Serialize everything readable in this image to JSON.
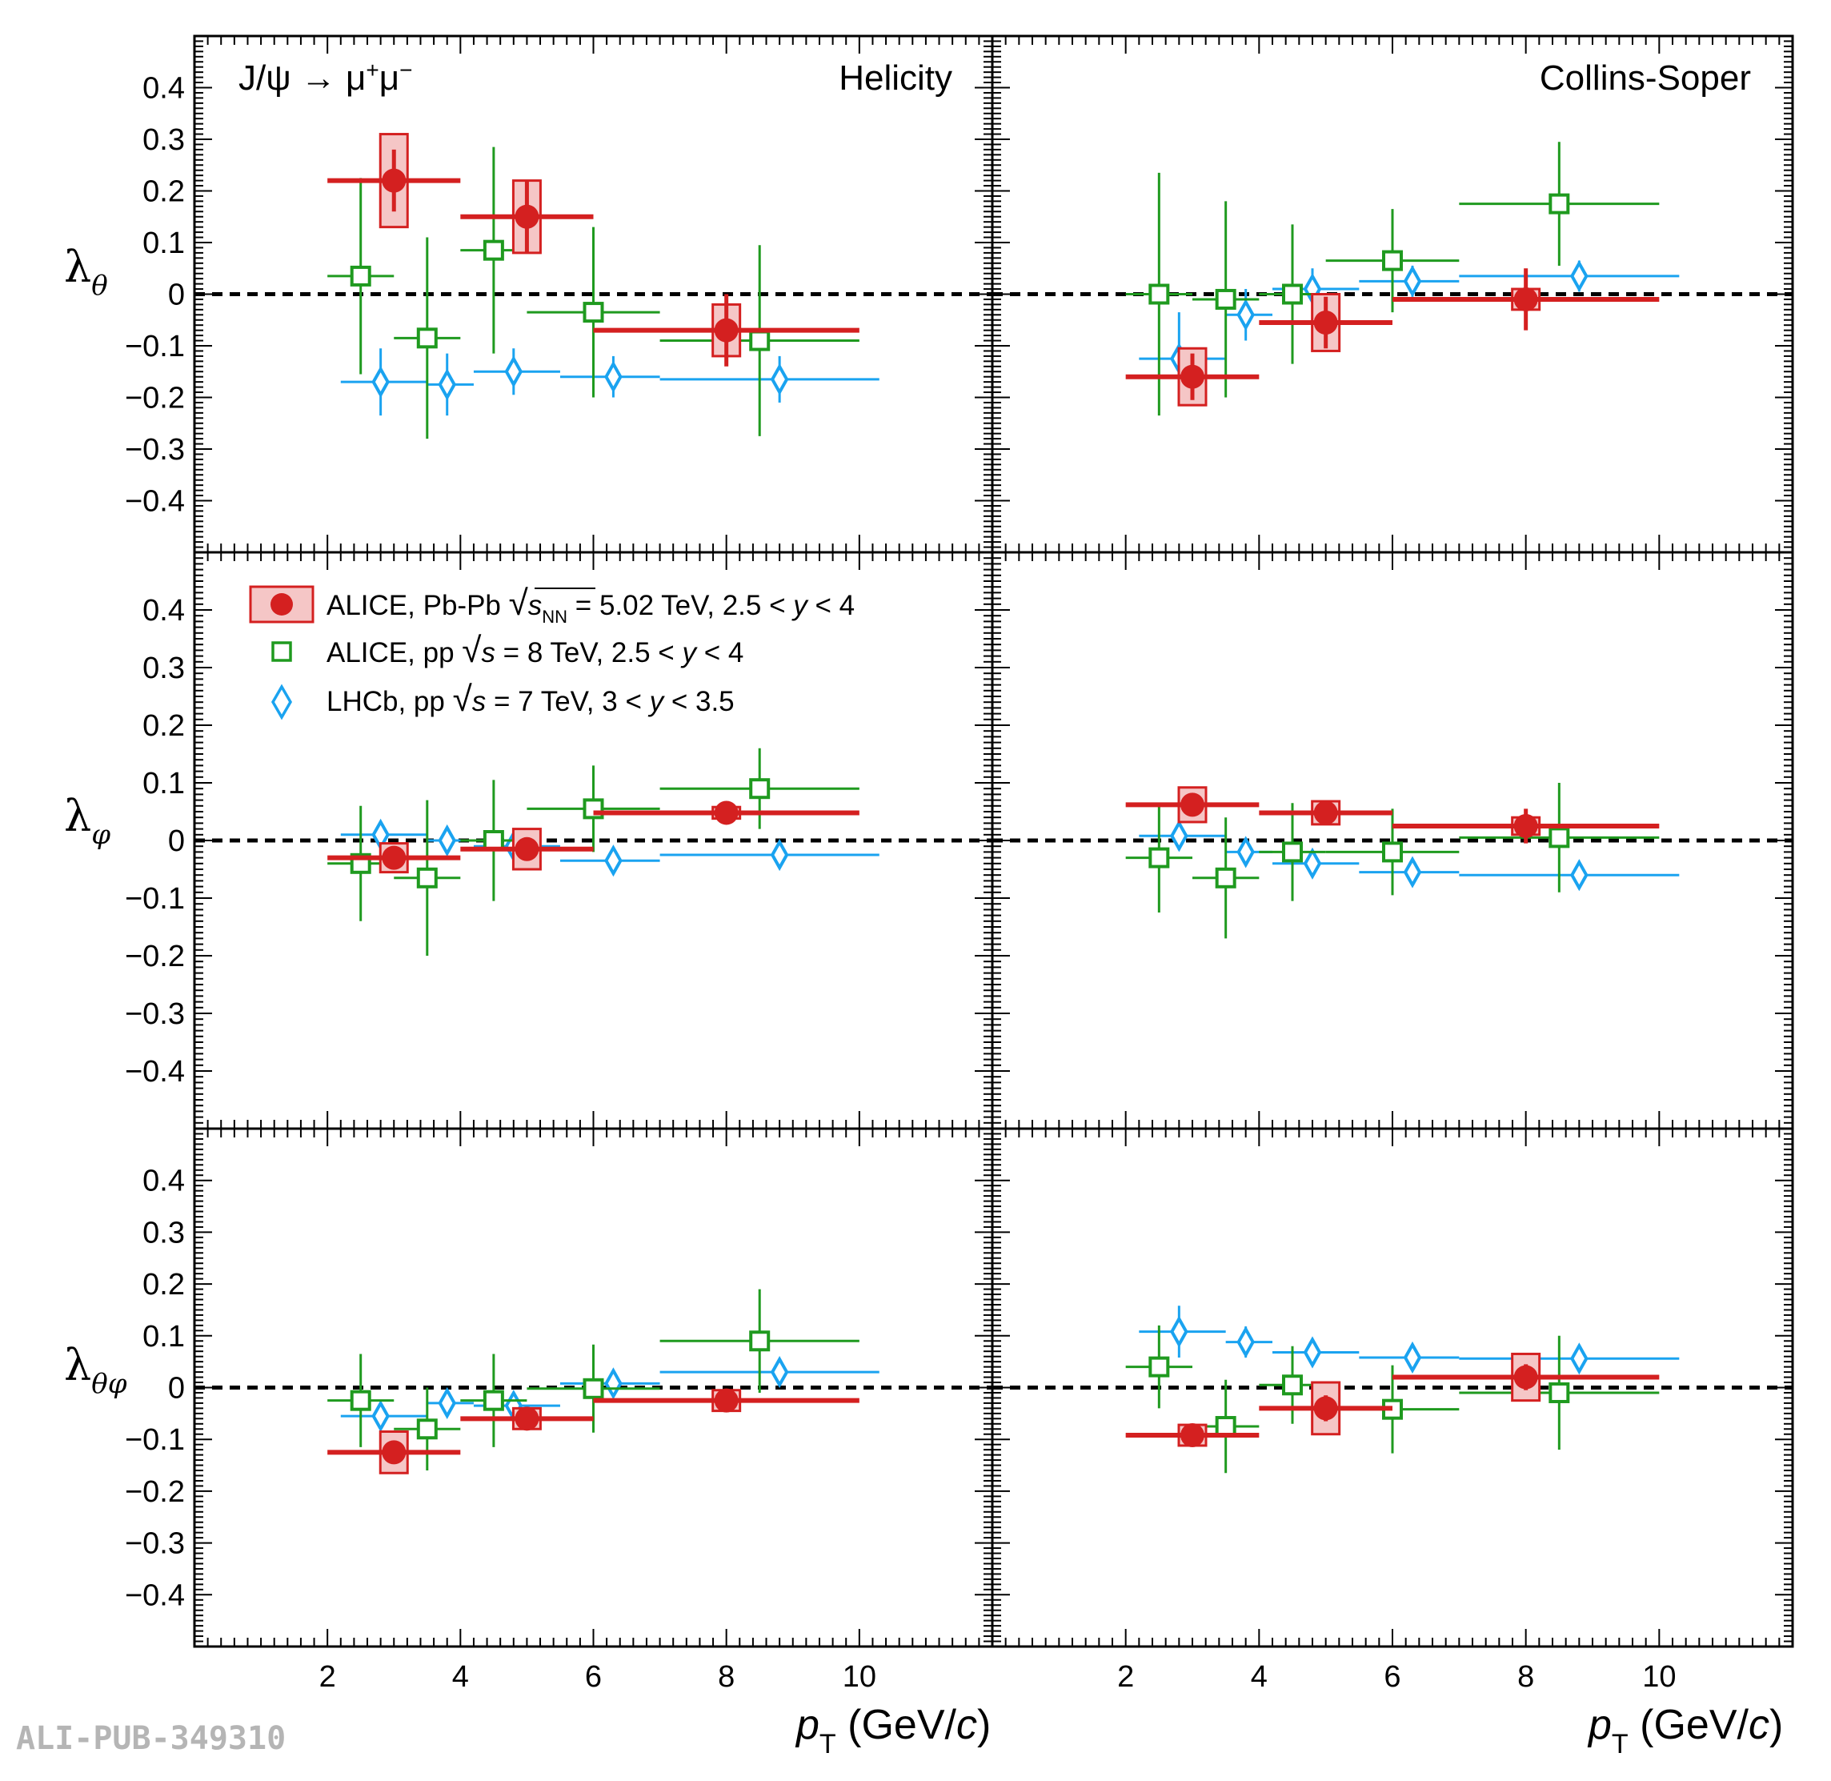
{
  "chart_data": {
    "type": "scatter",
    "xlim": [
      0,
      12
    ],
    "ylim": [
      -0.5,
      0.5
    ],
    "x_ticks": [
      2,
      4,
      6,
      8,
      10
    ],
    "y_ticks": [
      -0.4,
      -0.3,
      -0.2,
      -0.1,
      0,
      0.1,
      0.2,
      0.3,
      0.4
    ],
    "y_tick_labels": [
      "−0.4",
      "−0.3",
      "−0.2",
      "−0.1",
      "0",
      "0.1",
      "0.2",
      "0.3",
      "0.4"
    ],
    "x_tick_labels": [
      "2",
      "4",
      "6",
      "8",
      "10"
    ],
    "xlabel_left": {
      "p": "p",
      "sub": "T",
      "unit_pre": " (GeV/",
      "unit_c": "c",
      "unit_post": ")"
    },
    "xlabel_right": {
      "p": "p",
      "sub": "T",
      "unit_pre": " (GeV/",
      "unit_c": "c",
      "unit_post": ")"
    },
    "row_labels": [
      {
        "symbol": "λ",
        "sub": "θ"
      },
      {
        "symbol": "λ",
        "sub": "φ"
      },
      {
        "symbol": "λ",
        "sub": "θφ"
      }
    ],
    "column_titles": [
      "Helicity",
      "Collins-Soper"
    ],
    "decay_label": {
      "a": "J/ψ → μ",
      "sup1": "+",
      "b": "μ",
      "sup2": "−"
    },
    "watermark": "ALI-PUB-349310",
    "legend": [
      {
        "name": "ALICE, Pb-Pb",
        "sqrt_arg": "s",
        "sqrt_sub": "NN",
        "rest": " = 5.02 TeV, 2.5 < ",
        "yvar": "y",
        "tail": " < 4",
        "color": "#d42020",
        "marker": "circle"
      },
      {
        "name": "ALICE, pp",
        "sqrt_arg": "s",
        "sqrt_sub": "",
        "rest": " = 8 TeV, 2.5 < ",
        "yvar": "y",
        "tail": " < 4",
        "color": "#1f9a1f",
        "marker": "open-square"
      },
      {
        "name": "LHCb, pp",
        "sqrt_arg": "s",
        "sqrt_sub": "",
        "rest": " = 7 TeV, 3 < ",
        "yvar": "y",
        "tail": " < 3.5",
        "color": "#1aa3f0",
        "marker": "open-diamond"
      }
    ],
    "panels": [
      {
        "row": 0,
        "col": 0,
        "series": {
          "pbpb": [
            {
              "x": 3,
              "y": 0.22,
              "xlo": 2,
              "xhi": 4,
              "err": 0.06,
              "sys": 0.09
            },
            {
              "x": 5,
              "y": 0.15,
              "xlo": 4,
              "xhi": 6,
              "err": 0.07,
              "sys": 0.07
            },
            {
              "x": 8,
              "y": -0.07,
              "xlo": 6,
              "xhi": 10,
              "err": 0.07,
              "sys": 0.05
            }
          ],
          "pp8": [
            {
              "x": 2.5,
              "y": 0.035,
              "xlo": 2,
              "xhi": 3,
              "err": 0.19
            },
            {
              "x": 3.5,
              "y": -0.085,
              "xlo": 3,
              "xhi": 4,
              "err": 0.195
            },
            {
              "x": 4.5,
              "y": 0.085,
              "xlo": 4,
              "xhi": 5,
              "err": 0.2
            },
            {
              "x": 6,
              "y": -0.035,
              "xlo": 5,
              "xhi": 7,
              "err": 0.165
            },
            {
              "x": 8.5,
              "y": -0.09,
              "xlo": 7,
              "xhi": 10,
              "err": 0.185
            }
          ],
          "lhcb": [
            {
              "x": 2.8,
              "y": -0.17,
              "xlo": 2.2,
              "xhi": 3.5,
              "err": 0.065
            },
            {
              "x": 3.8,
              "y": -0.175,
              "xlo": 3.5,
              "xhi": 4.2,
              "err": 0.06
            },
            {
              "x": 4.8,
              "y": -0.15,
              "xlo": 4.2,
              "xhi": 5.5,
              "err": 0.045
            },
            {
              "x": 6.3,
              "y": -0.16,
              "xlo": 5.5,
              "xhi": 7,
              "err": 0.04
            },
            {
              "x": 8.8,
              "y": -0.165,
              "xlo": 7,
              "xhi": 10.3,
              "err": 0.045
            }
          ]
        }
      },
      {
        "row": 0,
        "col": 1,
        "series": {
          "pbpb": [
            {
              "x": 3,
              "y": -0.16,
              "xlo": 2,
              "xhi": 4,
              "err": 0.045,
              "sys": 0.055
            },
            {
              "x": 5,
              "y": -0.055,
              "xlo": 4,
              "xhi": 6,
              "err": 0.05,
              "sys": 0.055
            },
            {
              "x": 8,
              "y": -0.01,
              "xlo": 6,
              "xhi": 10,
              "err": 0.06,
              "sys": 0.02
            }
          ],
          "pp8": [
            {
              "x": 2.5,
              "y": 0.0,
              "xlo": 2,
              "xhi": 3,
              "err": 0.235
            },
            {
              "x": 3.5,
              "y": -0.01,
              "xlo": 3,
              "xhi": 4,
              "err": 0.19
            },
            {
              "x": 4.5,
              "y": 0.0,
              "xlo": 4,
              "xhi": 5,
              "err": 0.135
            },
            {
              "x": 6,
              "y": 0.065,
              "xlo": 5,
              "xhi": 7,
              "err": 0.1
            },
            {
              "x": 8.5,
              "y": 0.175,
              "xlo": 7,
              "xhi": 10,
              "err": 0.12
            }
          ],
          "lhcb": [
            {
              "x": 2.8,
              "y": -0.125,
              "xlo": 2.2,
              "xhi": 3.5,
              "err": 0.09
            },
            {
              "x": 3.8,
              "y": -0.04,
              "xlo": 3.5,
              "xhi": 4.2,
              "err": 0.05
            },
            {
              "x": 4.8,
              "y": 0.01,
              "xlo": 4.2,
              "xhi": 5.5,
              "err": 0.04
            },
            {
              "x": 6.3,
              "y": 0.025,
              "xlo": 5.5,
              "xhi": 7,
              "err": 0.03
            },
            {
              "x": 8.8,
              "y": 0.035,
              "xlo": 7,
              "xhi": 10.3,
              "err": 0.03
            }
          ]
        }
      },
      {
        "row": 1,
        "col": 0,
        "series": {
          "pbpb": [
            {
              "x": 3,
              "y": -0.03,
              "xlo": 2,
              "xhi": 4,
              "err": 0.02,
              "sys": 0.025
            },
            {
              "x": 5,
              "y": -0.015,
              "xlo": 4,
              "xhi": 6,
              "err": 0.02,
              "sys": 0.035
            },
            {
              "x": 8,
              "y": 0.048,
              "xlo": 6,
              "xhi": 10,
              "err": 0.015,
              "sys": 0.01
            }
          ],
          "pp8": [
            {
              "x": 2.5,
              "y": -0.04,
              "xlo": 2,
              "xhi": 3,
              "err": 0.1
            },
            {
              "x": 3.5,
              "y": -0.065,
              "xlo": 3,
              "xhi": 4,
              "err": 0.135
            },
            {
              "x": 4.5,
              "y": 0.0,
              "xlo": 4,
              "xhi": 5,
              "err": 0.105
            },
            {
              "x": 6,
              "y": 0.055,
              "xlo": 5,
              "xhi": 7,
              "err": 0.075
            },
            {
              "x": 8.5,
              "y": 0.09,
              "xlo": 7,
              "xhi": 10,
              "err": 0.07
            }
          ],
          "lhcb": [
            {
              "x": 2.8,
              "y": 0.01,
              "xlo": 2.2,
              "xhi": 3.5,
              "err": 0.02
            },
            {
              "x": 3.8,
              "y": 0.0,
              "xlo": 3.5,
              "xhi": 4.2,
              "err": 0.015
            },
            {
              "x": 4.8,
              "y": -0.01,
              "xlo": 4.2,
              "xhi": 5.5,
              "err": 0.015
            },
            {
              "x": 6.3,
              "y": -0.035,
              "xlo": 5.5,
              "xhi": 7,
              "err": 0.015
            },
            {
              "x": 8.8,
              "y": -0.025,
              "xlo": 7,
              "xhi": 10.3,
              "err": 0.015
            }
          ]
        }
      },
      {
        "row": 1,
        "col": 1,
        "series": {
          "pbpb": [
            {
              "x": 3,
              "y": 0.062,
              "xlo": 2,
              "xhi": 4,
              "err": 0.02,
              "sys": 0.03
            },
            {
              "x": 5,
              "y": 0.048,
              "xlo": 4,
              "xhi": 6,
              "err": 0.015,
              "sys": 0.02
            },
            {
              "x": 8,
              "y": 0.025,
              "xlo": 6,
              "xhi": 10,
              "err": 0.03,
              "sys": 0.015
            }
          ],
          "pp8": [
            {
              "x": 2.5,
              "y": -0.03,
              "xlo": 2,
              "xhi": 3,
              "err": 0.095
            },
            {
              "x": 3.5,
              "y": -0.065,
              "xlo": 3,
              "xhi": 4,
              "err": 0.105
            },
            {
              "x": 4.5,
              "y": -0.02,
              "xlo": 4,
              "xhi": 5,
              "err": 0.085
            },
            {
              "x": 6,
              "y": -0.02,
              "xlo": 5,
              "xhi": 7,
              "err": 0.075
            },
            {
              "x": 8.5,
              "y": 0.005,
              "xlo": 7,
              "xhi": 10,
              "err": 0.095
            }
          ],
          "lhcb": [
            {
              "x": 2.8,
              "y": 0.008,
              "xlo": 2.2,
              "xhi": 3.5,
              "err": 0.025
            },
            {
              "x": 3.8,
              "y": -0.02,
              "xlo": 3.5,
              "xhi": 4.2,
              "err": 0.02
            },
            {
              "x": 4.8,
              "y": -0.04,
              "xlo": 4.2,
              "xhi": 5.5,
              "err": 0.02
            },
            {
              "x": 6.3,
              "y": -0.055,
              "xlo": 5.5,
              "xhi": 7,
              "err": 0.02
            },
            {
              "x": 8.8,
              "y": -0.06,
              "xlo": 7,
              "xhi": 10.3,
              "err": 0.02
            }
          ]
        }
      },
      {
        "row": 2,
        "col": 0,
        "series": {
          "pbpb": [
            {
              "x": 3,
              "y": -0.125,
              "xlo": 2,
              "xhi": 4,
              "err": 0.02,
              "sys": 0.04
            },
            {
              "x": 5,
              "y": -0.06,
              "xlo": 4,
              "xhi": 6,
              "err": 0.02,
              "sys": 0.02
            },
            {
              "x": 8,
              "y": -0.025,
              "xlo": 6,
              "xhi": 10,
              "err": 0.02,
              "sys": 0.02
            }
          ],
          "pp8": [
            {
              "x": 2.5,
              "y": -0.025,
              "xlo": 2,
              "xhi": 3,
              "err": 0.09
            },
            {
              "x": 3.5,
              "y": -0.08,
              "xlo": 3,
              "xhi": 4,
              "err": 0.08
            },
            {
              "x": 4.5,
              "y": -0.025,
              "xlo": 4,
              "xhi": 5,
              "err": 0.09
            },
            {
              "x": 6,
              "y": -0.002,
              "xlo": 5,
              "xhi": 7,
              "err": 0.085
            },
            {
              "x": 8.5,
              "y": 0.09,
              "xlo": 7,
              "xhi": 10,
              "err": 0.1
            }
          ],
          "lhcb": [
            {
              "x": 2.8,
              "y": -0.055,
              "xlo": 2.2,
              "xhi": 3.5,
              "err": 0.02
            },
            {
              "x": 3.8,
              "y": -0.03,
              "xlo": 3.5,
              "xhi": 4.2,
              "err": 0.02
            },
            {
              "x": 4.8,
              "y": -0.035,
              "xlo": 4.2,
              "xhi": 5.5,
              "err": 0.02
            },
            {
              "x": 6.3,
              "y": 0.008,
              "xlo": 5.5,
              "xhi": 7,
              "err": 0.015
            },
            {
              "x": 8.8,
              "y": 0.03,
              "xlo": 7,
              "xhi": 10.3,
              "err": 0.02
            }
          ]
        }
      },
      {
        "row": 2,
        "col": 1,
        "series": {
          "pbpb": [
            {
              "x": 3,
              "y": -0.092,
              "xlo": 2,
              "xhi": 4,
              "err": 0.02,
              "sys": 0.02
            },
            {
              "x": 5,
              "y": -0.04,
              "xlo": 4,
              "xhi": 6,
              "err": 0.025,
              "sys": 0.05
            },
            {
              "x": 8,
              "y": 0.02,
              "xlo": 6,
              "xhi": 10,
              "err": 0.025,
              "sys": 0.045
            }
          ],
          "pp8": [
            {
              "x": 2.5,
              "y": 0.04,
              "xlo": 2,
              "xhi": 3,
              "err": 0.08
            },
            {
              "x": 3.5,
              "y": -0.075,
              "xlo": 3,
              "xhi": 4,
              "err": 0.09
            },
            {
              "x": 4.5,
              "y": 0.005,
              "xlo": 4,
              "xhi": 5,
              "err": 0.075
            },
            {
              "x": 6,
              "y": -0.042,
              "xlo": 5,
              "xhi": 7,
              "err": 0.085
            },
            {
              "x": 8.5,
              "y": -0.01,
              "xlo": 7,
              "xhi": 10,
              "err": 0.11
            }
          ],
          "lhcb": [
            {
              "x": 2.8,
              "y": 0.108,
              "xlo": 2.2,
              "xhi": 3.5,
              "err": 0.05
            },
            {
              "x": 3.8,
              "y": 0.088,
              "xlo": 3.5,
              "xhi": 4.2,
              "err": 0.03
            },
            {
              "x": 4.8,
              "y": 0.068,
              "xlo": 4.2,
              "xhi": 5.5,
              "err": 0.025
            },
            {
              "x": 6.3,
              "y": 0.058,
              "xlo": 5.5,
              "xhi": 7,
              "err": 0.02
            },
            {
              "x": 8.8,
              "y": 0.056,
              "xlo": 7,
              "xhi": 10.3,
              "err": 0.02
            }
          ]
        }
      }
    ]
  }
}
